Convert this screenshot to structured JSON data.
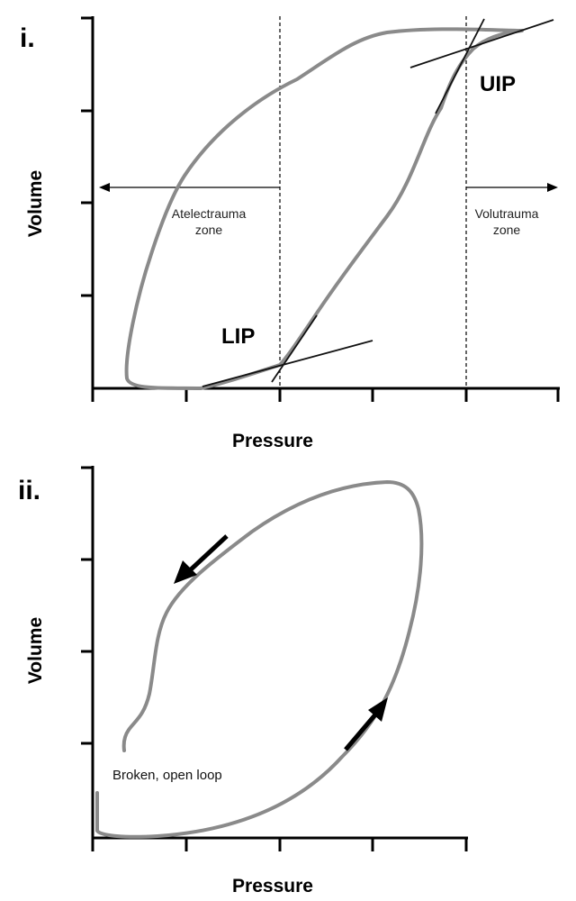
{
  "panel_i": {
    "label": "i.",
    "x_axis_title": "Pressure",
    "y_axis_title": "Volume",
    "lip_label": "LIP",
    "uip_label": "UIP",
    "atelectrauma_line1": "Atelectrauma",
    "atelectrauma_line2": "zone",
    "volutrauma_line1": "Volutrauma",
    "volutrauma_line2": "zone"
  },
  "panel_ii": {
    "label": "ii.",
    "x_axis_title": "Pressure",
    "y_axis_title": "Volume",
    "note": "Broken, open loop"
  },
  "colors": {
    "curve": "#8a8a8a",
    "axis": "#000000",
    "tangent": "#111111"
  }
}
